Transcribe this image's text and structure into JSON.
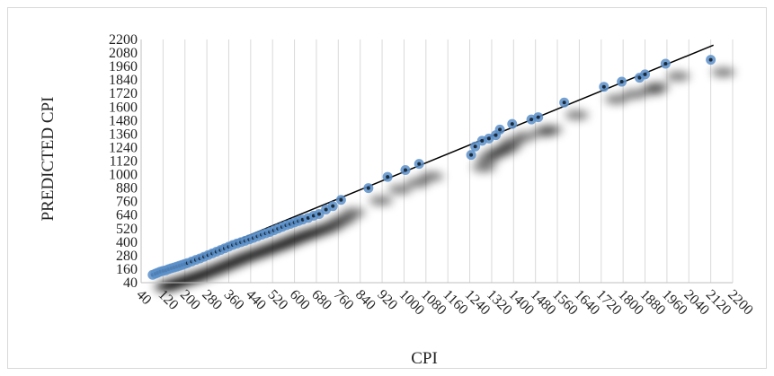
{
  "chart_data": {
    "type": "scatter",
    "title": "",
    "xlabel": "CPI",
    "ylabel": "PREDICTED CPI",
    "xlim": [
      40,
      2200
    ],
    "ylim": [
      40,
      2200
    ],
    "x_ticks": [
      40,
      120,
      200,
      280,
      360,
      440,
      520,
      600,
      680,
      760,
      840,
      920,
      1000,
      1080,
      1160,
      1240,
      1320,
      1400,
      1480,
      1560,
      1640,
      1720,
      1800,
      1880,
      1960,
      2040,
      2120,
      2200
    ],
    "y_ticks": [
      40,
      160,
      280,
      400,
      520,
      640,
      760,
      880,
      1000,
      1120,
      1240,
      1360,
      1480,
      1600,
      1720,
      1840,
      1960,
      2080,
      2200
    ],
    "x_tick_labels": [
      "40",
      "120",
      "200",
      "280",
      "360",
      "440",
      "520",
      "600",
      "680",
      "760",
      "840",
      "920",
      "1000",
      "1080",
      "1160",
      "1240",
      "1320",
      "1400",
      "1480",
      "1560",
      "1640",
      "1720",
      "1800",
      "1880",
      "1960",
      "2040",
      "2120",
      "2200"
    ],
    "y_tick_labels": [
      "40",
      "160",
      "280",
      "400",
      "520",
      "640",
      "760",
      "880",
      "1000",
      "1120",
      "1240",
      "1360",
      "1480",
      "1600",
      "1720",
      "1840",
      "1960",
      "2080",
      "2200"
    ],
    "grid": "vertical",
    "legend": "none",
    "marker_color": "#5b8fc9",
    "trendline_color": "#000000",
    "series": [
      {
        "values": [
          [
            82,
            110
          ],
          [
            92,
            120
          ],
          [
            100,
            128
          ],
          [
            110,
            138
          ],
          [
            120,
            145
          ],
          [
            130,
            150
          ],
          [
            140,
            160
          ],
          [
            150,
            168
          ],
          [
            160,
            175
          ],
          [
            170,
            182
          ],
          [
            180,
            190
          ],
          [
            190,
            198
          ],
          [
            200,
            206
          ],
          [
            210,
            214
          ],
          [
            225,
            228
          ],
          [
            240,
            242
          ],
          [
            255,
            255
          ],
          [
            270,
            270
          ],
          [
            285,
            285
          ],
          [
            300,
            300
          ],
          [
            315,
            315
          ],
          [
            330,
            330
          ],
          [
            345,
            345
          ],
          [
            360,
            360
          ],
          [
            375,
            375
          ],
          [
            390,
            388
          ],
          [
            405,
            400
          ],
          [
            420,
            412
          ],
          [
            435,
            425
          ],
          [
            450,
            438
          ],
          [
            465,
            452
          ],
          [
            480,
            466
          ],
          [
            495,
            478
          ],
          [
            510,
            490
          ],
          [
            525,
            505
          ],
          [
            540,
            520
          ],
          [
            555,
            535
          ],
          [
            570,
            550
          ],
          [
            585,
            562
          ],
          [
            600,
            575
          ],
          [
            615,
            588
          ],
          [
            630,
            600
          ],
          [
            650,
            615
          ],
          [
            670,
            635
          ],
          [
            690,
            650
          ],
          [
            715,
            690
          ],
          [
            740,
            720
          ],
          [
            770,
            775
          ],
          [
            870,
            880
          ],
          [
            940,
            980
          ],
          [
            1005,
            1040
          ],
          [
            1055,
            1095
          ],
          [
            1245,
            1175
          ],
          [
            1260,
            1250
          ],
          [
            1285,
            1300
          ],
          [
            1310,
            1320
          ],
          [
            1335,
            1350
          ],
          [
            1350,
            1400
          ],
          [
            1395,
            1450
          ],
          [
            1465,
            1490
          ],
          [
            1490,
            1510
          ],
          [
            1585,
            1640
          ],
          [
            1730,
            1780
          ],
          [
            1795,
            1825
          ],
          [
            1860,
            1860
          ],
          [
            1880,
            1890
          ],
          [
            1955,
            1985
          ],
          [
            2120,
            2020
          ]
        ]
      }
    ],
    "trendline": [
      [
        80,
        108
      ],
      [
        2130,
        2150
      ]
    ]
  }
}
